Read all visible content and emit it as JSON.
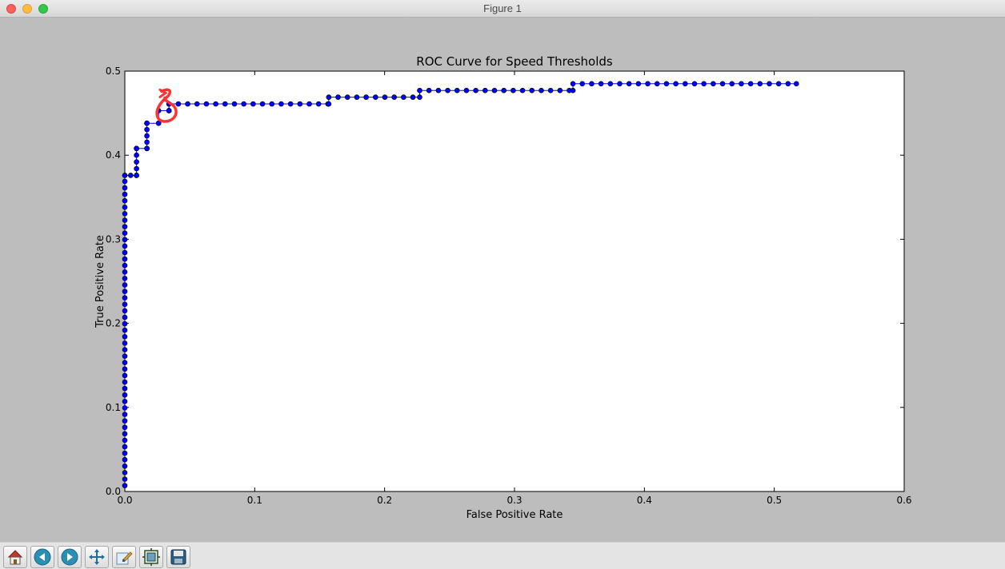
{
  "window": {
    "title": "Figure 1"
  },
  "toolbar": {
    "tools": [
      {
        "name": "home-icon"
      },
      {
        "name": "back-arrow-icon"
      },
      {
        "name": "forward-arrow-icon"
      },
      {
        "name": "pan-icon"
      },
      {
        "name": "zoom-icon"
      },
      {
        "name": "subplots-icon"
      },
      {
        "name": "save-icon"
      }
    ]
  },
  "chart_data": {
    "type": "line",
    "title": "ROC Curve for Speed Thresholds",
    "xlabel": "False Positive Rate",
    "ylabel": "True Positive Rate",
    "xlim": [
      0.0,
      0.6
    ],
    "ylim": [
      0.0,
      0.5
    ],
    "xticks": [
      "0.0",
      "0.1",
      "0.2",
      "0.3",
      "0.4",
      "0.5",
      "0.6"
    ],
    "yticks": [
      "0.0",
      "0.1",
      "0.2",
      "0.3",
      "0.4",
      "0.5"
    ],
    "grid": false,
    "series": [
      {
        "color": "#0000ff",
        "marker": "circle",
        "vertical_runs": [
          {
            "x": 0.0,
            "y_from": 0.007,
            "y_to": 0.376,
            "step": 0.0077
          },
          {
            "x": 0.009,
            "y_from": 0.376,
            "y_to": 0.408,
            "step": 0.008
          },
          {
            "x": 0.017,
            "y_from": 0.408,
            "y_to": 0.438,
            "step": 0.0075
          },
          {
            "x": 0.034,
            "y_from": 0.453,
            "y_to": 0.461,
            "step": 0.008
          }
        ],
        "horizontal_runs": [
          {
            "y": 0.376,
            "x_from": 0.0,
            "x_to": 0.009,
            "step": 0.0045
          },
          {
            "y": 0.408,
            "x_from": 0.009,
            "x_to": 0.017,
            "step": 0.008
          },
          {
            "y": 0.438,
            "x_from": 0.017,
            "x_to": 0.026,
            "step": 0.009
          },
          {
            "y": 0.453,
            "x_from": 0.026,
            "x_to": 0.034,
            "step": 0.008
          },
          {
            "y": 0.461,
            "x_from": 0.034,
            "x_to": 0.157,
            "step": 0.0072
          },
          {
            "y": 0.469,
            "x_from": 0.157,
            "x_to": 0.227,
            "step": 0.0072
          },
          {
            "y": 0.477,
            "x_from": 0.227,
            "x_to": 0.345,
            "step": 0.0072
          },
          {
            "y": 0.485,
            "x_from": 0.345,
            "x_to": 0.517,
            "step": 0.0072
          }
        ]
      }
    ],
    "annotation": {
      "kind": "hand-drawn-circle",
      "color": "#ff3333",
      "x": 0.032,
      "y": 0.455
    }
  }
}
